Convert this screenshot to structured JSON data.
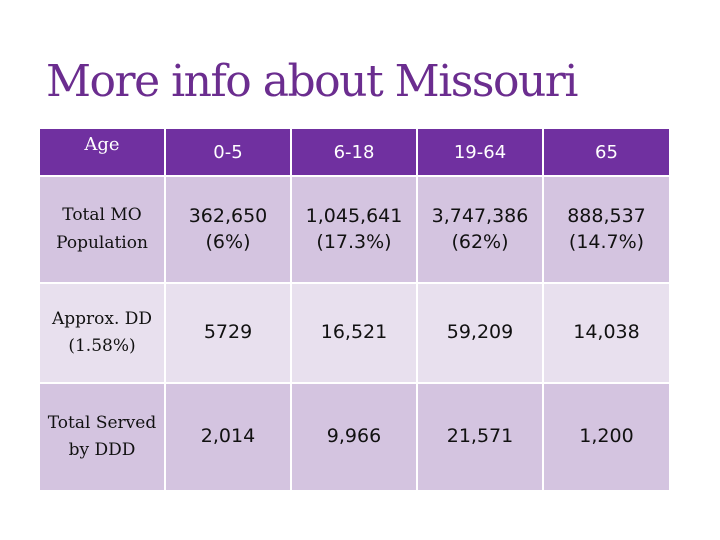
{
  "title": "More info about Missouri",
  "table": {
    "header": [
      "Age",
      "0-5",
      "6-18",
      "19-64",
      "65"
    ],
    "rows": [
      {
        "label": "Total MO Population",
        "cells": [
          "362,650 (6%)",
          "1,045,641 (17.3%)",
          "3,747,386 (62%)",
          "888,537 (14.7%)"
        ]
      },
      {
        "label": "Approx. DD (1.58%)",
        "cells": [
          "5729",
          "16,521",
          "59,209",
          "14,038"
        ]
      },
      {
        "label": "Total Served by DDD",
        "cells": [
          "2,014",
          "9,966",
          "21,571",
          "1,200"
        ]
      }
    ]
  },
  "colors": {
    "title": "#6b2d8f",
    "header_bg": "#7030a0",
    "row_bg": "#d4c4e0",
    "row_alt_bg": "#e8e0ee"
  }
}
